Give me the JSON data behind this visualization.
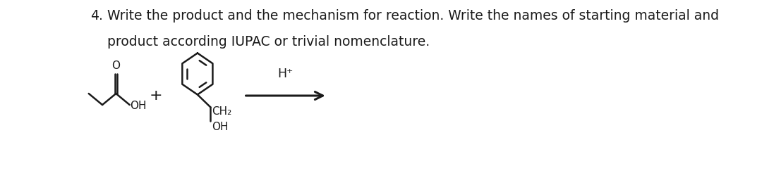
{
  "title_number": "4.",
  "line1": "Write the product and the mechanism for reaction. Write the names of starting material and",
  "line2": "product according IUPAC or trivial nomenclature.",
  "font_size": 13.5,
  "bg_color": "#ffffff",
  "text_color": "#1a1a1a",
  "lw": 1.8,
  "black": "#1a1a1a"
}
